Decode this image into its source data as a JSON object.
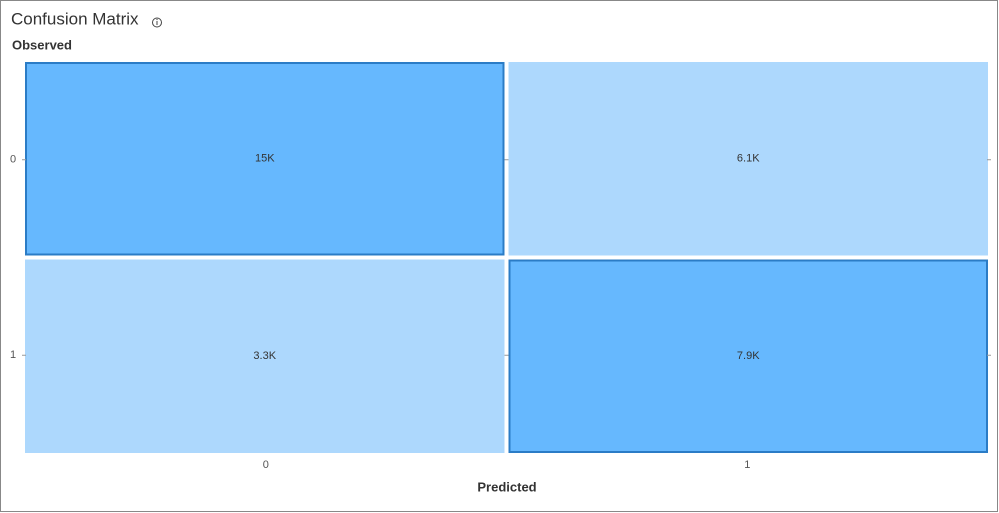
{
  "chart_data": {
    "type": "heatmap",
    "title": "Confusion Matrix",
    "y_label": "Observed",
    "x_label": "Predicted",
    "x_categories": [
      "0",
      "1"
    ],
    "y_categories": [
      "0",
      "1"
    ],
    "values": [
      [
        15000,
        6100
      ],
      [
        3300,
        7900
      ]
    ],
    "value_labels": [
      [
        "15K",
        "6.1K"
      ],
      [
        "3.3K",
        "7.9K"
      ]
    ],
    "colors": [
      [
        "#66b8fe",
        "#add8fd"
      ],
      [
        "#add8fd",
        "#66b8fe"
      ]
    ],
    "border_color": "#2b7cc6"
  }
}
